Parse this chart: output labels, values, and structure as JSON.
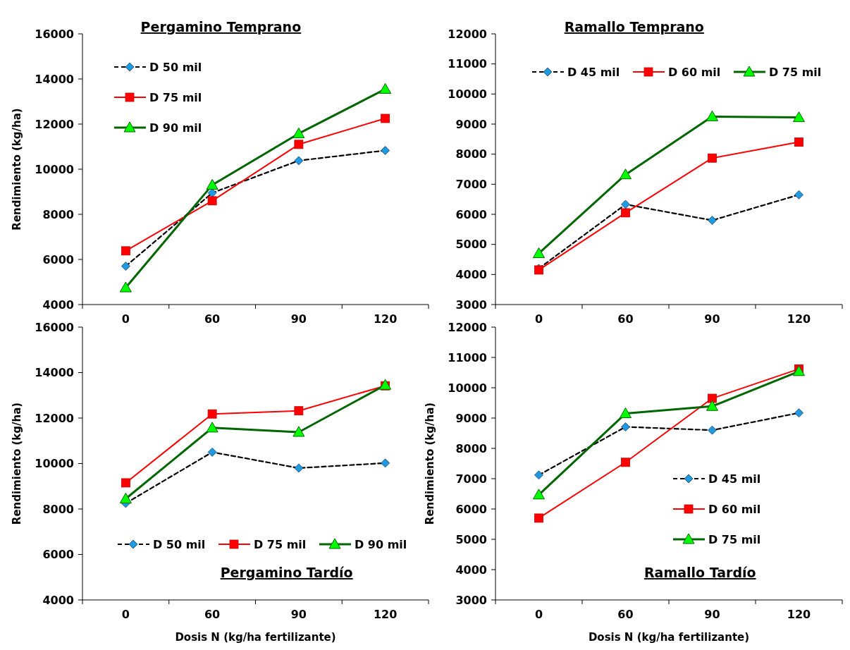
{
  "chart_data": [
    {
      "type": "line",
      "title": "Pergamino Temprano",
      "ylabel": "Rendimiento (kg/ha)",
      "categories": [
        "0",
        "60",
        "90",
        "120"
      ],
      "ylim": [
        4000,
        16000
      ],
      "yticks": [
        4000,
        6000,
        8000,
        10000,
        12000,
        14000,
        16000
      ],
      "grid": false,
      "legend": "top left",
      "tick_labels": "y",
      "series": [
        {
          "name": "D 50 mil",
          "color": "#000000",
          "colors": [
            "#1e9be0",
            "#1e9be0",
            "#1e9be0",
            "#1e9be0"
          ],
          "marker": "diamond",
          "line_style": "dashed",
          "values": [
            5700,
            8950,
            10380,
            10830
          ]
        },
        {
          "name": "D 75 mil",
          "color": "#ff0000",
          "colors": [
            "#ff0000",
            "#ff0000",
            "#ff0000",
            "#ff0000"
          ],
          "marker": "square",
          "line_style": "solid",
          "values": [
            6380,
            8600,
            11100,
            12250
          ]
        },
        {
          "name": "D 90 mil",
          "color": "#006600",
          "colors": [
            "#00ff00",
            "#00ff00",
            "#00ff00",
            "#00ff00"
          ],
          "marker": "triangle",
          "line_style": "solid",
          "values": [
            4750,
            9300,
            11580,
            13550
          ]
        }
      ]
    },
    {
      "type": "line",
      "title": "Ramallo Temprano",
      "categories": [
        "0",
        "60",
        "90",
        "120"
      ],
      "ylim": [
        3000,
        12000
      ],
      "yticks": [
        3000,
        4000,
        5000,
        6000,
        7000,
        8000,
        9000,
        10000,
        11000,
        12000
      ],
      "grid": false,
      "legend": "top",
      "series": [
        {
          "name": "D 45 mil",
          "color": "#000000",
          "colors": [
            "#1e9be0",
            "#1e9be0",
            "#1e9be0",
            "#1e9be0"
          ],
          "marker": "diamond",
          "line_style": "dashed",
          "values": [
            4200,
            6330,
            5800,
            6650
          ]
        },
        {
          "name": "D 60 mil",
          "color": "#ff0000",
          "colors": [
            "#ff0000",
            "#ff0000",
            "#ff0000",
            "#ff0000"
          ],
          "marker": "square",
          "line_style": "solid",
          "values": [
            4150,
            6050,
            7870,
            8400
          ]
        },
        {
          "name": "D 75 mil",
          "color": "#006600",
          "colors": [
            "#00ff00",
            "#00ff00",
            "#00ff00",
            "#00ff00"
          ],
          "marker": "triangle",
          "line_style": "solid",
          "values": [
            4700,
            7320,
            9250,
            9220
          ]
        }
      ]
    },
    {
      "type": "line",
      "title": "Pergamino Tardío",
      "xlabel": "Dosis N (kg/ha fertilizante)",
      "ylabel": "Rendimiento (kg/ha)",
      "categories": [
        "0",
        "60",
        "90",
        "120"
      ],
      "ylim": [
        4000,
        16000
      ],
      "yticks": [
        4000,
        6000,
        8000,
        10000,
        12000,
        14000,
        16000
      ],
      "grid": false,
      "legend": "bottom",
      "series": [
        {
          "name": "D 50 mil",
          "color": "#000000",
          "colors": [
            "#1e9be0",
            "#1e9be0",
            "#1e9be0",
            "#1e9be0"
          ],
          "marker": "diamond",
          "line_style": "dashed",
          "values": [
            8250,
            10500,
            9800,
            10020
          ]
        },
        {
          "name": "D 75 mil",
          "color": "#ff0000",
          "colors": [
            "#ff0000",
            "#ff0000",
            "#ff0000",
            "#ff0000"
          ],
          "marker": "square",
          "line_style": "solid",
          "values": [
            9150,
            12180,
            12320,
            13420
          ]
        },
        {
          "name": "D 90 mil",
          "color": "#006600",
          "colors": [
            "#00ff00",
            "#00ff00",
            "#00ff00",
            "#00ff00"
          ],
          "marker": "triangle",
          "line_style": "solid",
          "values": [
            8450,
            11570,
            11380,
            13450
          ]
        }
      ]
    },
    {
      "type": "line",
      "title": "Ramallo Tardío",
      "xlabel": "Dosis N (kg/ha fertilizante)",
      "ylabel": "Rendimiento (kg/ha)",
      "categories": [
        "0",
        "60",
        "90",
        "120"
      ],
      "ylim": [
        3000,
        12000
      ],
      "yticks": [
        3000,
        4000,
        5000,
        6000,
        7000,
        8000,
        9000,
        10000,
        11000,
        12000
      ],
      "grid": false,
      "legend": "bottom right",
      "series": [
        {
          "name": "D 45 mil",
          "color": "#000000",
          "colors": [
            "#1e9be0",
            "#1e9be0",
            "#1e9be0",
            "#1e9be0"
          ],
          "marker": "diamond",
          "line_style": "dashed",
          "values": [
            7120,
            8710,
            8600,
            9170
          ]
        },
        {
          "name": "D 60 mil",
          "color": "#ff0000",
          "colors": [
            "#ff0000",
            "#ff0000",
            "#ff0000",
            "#ff0000"
          ],
          "marker": "square",
          "line_style": "solid",
          "values": [
            5700,
            7540,
            9650,
            10620
          ]
        },
        {
          "name": "D 75 mil",
          "color": "#006600",
          "colors": [
            "#00ff00",
            "#00ff00",
            "#00ff00",
            "#00ff00"
          ],
          "marker": "triangle",
          "line_style": "solid",
          "values": [
            6470,
            9150,
            9390,
            10540
          ]
        }
      ]
    }
  ]
}
